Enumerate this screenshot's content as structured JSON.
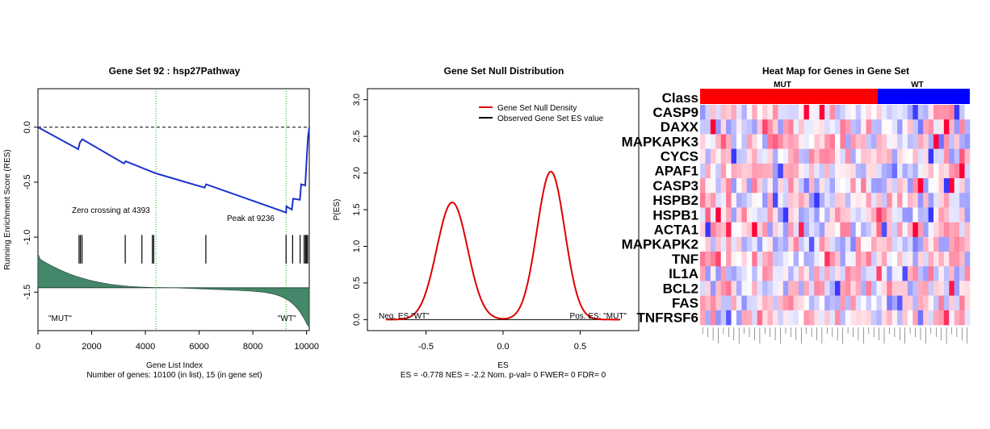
{
  "gsea_plot": {
    "title": "Gene Set  92 : hsp27Pathway",
    "ylabel": "Running Enrichment Score (RES)",
    "xlabel": "Gene List Index",
    "footer": "Number of genes: 10100 (in list), 15 (in gene set)",
    "zero_crossing_label": "Zero crossing at 4393",
    "peak_label": "Peak at 9236",
    "left_label": "\"MUT\"",
    "right_label": "\"WT\"",
    "x_ticks": [
      "0",
      "2000",
      "4000",
      "6000",
      "8000",
      "10000"
    ],
    "y_ticks": [
      "0.0",
      "-0.5",
      "-1.0",
      "-1.5"
    ],
    "colors": {
      "running_es": "#1a33cc",
      "ranked_metric": "#44876a",
      "markers": "#22aa22"
    }
  },
  "null_plot": {
    "title": "Gene Set Null Distribution",
    "ylabel": "P(ES)",
    "xlabel": "ES",
    "footer": "ES = -0.778  NES = -2.2 Nom. p-val= 0 FWER= 0 FDR= 0",
    "legend_density": "Gene Set Null Density",
    "legend_observed": "Observed Gene Set ES value",
    "left_label": "Neg. ES \"WT\"",
    "right_label": "Pos. ES: \"MUT\"",
    "x_ticks": [
      "-0.5",
      "0.0",
      "0.5"
    ],
    "y_ticks": [
      "0.0",
      "0.5",
      "1.0",
      "1.5",
      "2.0",
      "2.5",
      "3.0"
    ],
    "colors": {
      "density": "#dd0000",
      "observed": "#000000"
    }
  },
  "heatmap": {
    "title": "Heat Map for Genes in Gene Set",
    "class_label": "Class",
    "group_mut": "MUT",
    "group_wt": "WT",
    "genes": [
      "CASP9",
      "DAXX",
      "MAPKAPK3",
      "CYCS",
      "APAF1",
      "CASP3",
      "HSPB2",
      "HSPB1",
      "ACTA1",
      "MAPKAPK2",
      "TNF",
      "IL1A",
      "BCL2",
      "FAS",
      "TNFRSF6"
    ],
    "colors": {
      "mut": "#ff0000",
      "wt": "#0000ff"
    }
  },
  "chart_data": [
    {
      "type": "line",
      "title": "Gene Set  92 : hsp27Pathway",
      "xlabel": "Gene List Index",
      "ylabel": "Running Enrichment Score (RES)",
      "xlim": [
        0,
        10100
      ],
      "ylim": [
        -1.85,
        0.35
      ],
      "grid": false,
      "series": [
        {
          "x": [
            0,
            1500,
            1560,
            1650,
            3200,
            3260,
            4393,
            6200,
            6260,
            9150,
            9236,
            9250,
            9450,
            9500,
            9750,
            9800,
            9950,
            10000,
            10050,
            10100
          ],
          "y": [
            0.0,
            -0.2,
            -0.14,
            -0.11,
            -0.33,
            -0.31,
            -0.42,
            -0.55,
            -0.52,
            -0.768,
            -0.778,
            -0.72,
            -0.75,
            -0.65,
            -0.66,
            -0.52,
            -0.53,
            -0.3,
            -0.1,
            0.0
          ]
        }
      ],
      "hits": [
        1530,
        1580,
        1640,
        3250,
        3870,
        4260,
        4310,
        6250,
        9236,
        9480,
        9760,
        9910,
        9960,
        10000,
        10040
      ],
      "zero_crossing": 4393,
      "peak": 9236,
      "ranked_metric_baseline": -1.46
    },
    {
      "type": "line",
      "title": "Gene Set Null Distribution",
      "xlabel": "ES",
      "ylabel": "P(ES)",
      "xlim": [
        -0.88,
        0.88
      ],
      "ylim": [
        -0.15,
        3.15
      ],
      "grid": false,
      "legend": "top-right",
      "series": [
        {
          "name": "Gene Set Null Density",
          "peaks": [
            {
              "mean": -0.33,
              "sd": 0.1,
              "height": 1.6
            },
            {
              "mean": 0.31,
              "sd": 0.09,
              "height": 2.02
            }
          ]
        }
      ],
      "observed_es": -0.778
    },
    {
      "type": "heatmap",
      "title": "Heat Map for Genes in Gene Set",
      "rows": [
        "CASP9",
        "DAXX",
        "MAPKAPK3",
        "CYCS",
        "APAF1",
        "CASP3",
        "HSPB2",
        "HSPB1",
        "ACTA1",
        "MAPKAPK2",
        "TNF",
        "IL1A",
        "BCL2",
        "FAS",
        "TNFRSF6"
      ],
      "n_columns": 52,
      "mut_columns": 34,
      "wt_columns": 18,
      "range": [
        -3,
        3
      ]
    }
  ]
}
